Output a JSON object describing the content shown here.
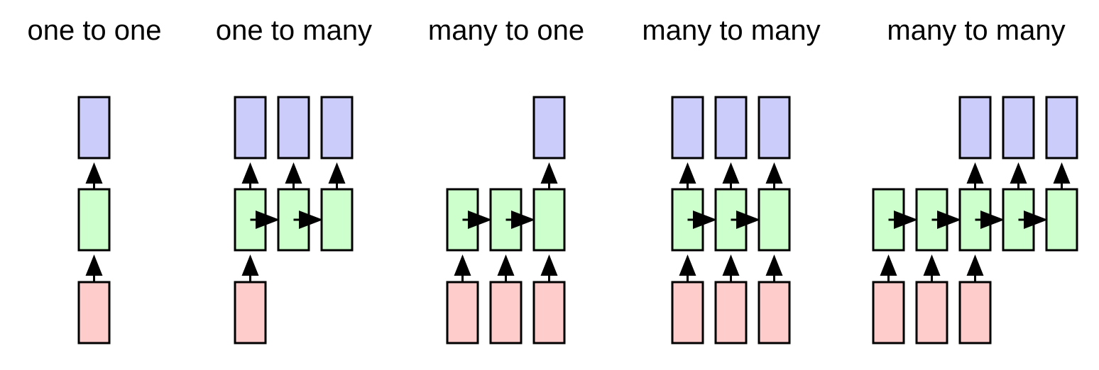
{
  "colors": {
    "output": "#ccccfa",
    "hidden": "#ccffcc",
    "input": "#ffcccc",
    "stroke": "#000000"
  },
  "panels": [
    {
      "title": "one to one",
      "inputs": [
        1,
        0,
        0,
        0,
        0
      ],
      "outputs": [
        1,
        0,
        0,
        0,
        0
      ],
      "hidden_count": 1
    },
    {
      "title": "one to many",
      "inputs": [
        1,
        0,
        0,
        0,
        0
      ],
      "outputs": [
        1,
        1,
        1,
        0,
        0
      ],
      "hidden_count": 3
    },
    {
      "title": "many to one",
      "inputs": [
        1,
        1,
        1,
        0,
        0
      ],
      "outputs": [
        0,
        0,
        1,
        0,
        0
      ],
      "hidden_count": 3
    },
    {
      "title": "many to many",
      "inputs": [
        1,
        1,
        1,
        0,
        0
      ],
      "outputs": [
        1,
        1,
        1,
        0,
        0
      ],
      "hidden_count": 3
    },
    {
      "title": "many to many",
      "inputs": [
        1,
        1,
        1,
        0,
        0
      ],
      "outputs": [
        0,
        0,
        1,
        1,
        1
      ],
      "hidden_count": 5
    }
  ]
}
